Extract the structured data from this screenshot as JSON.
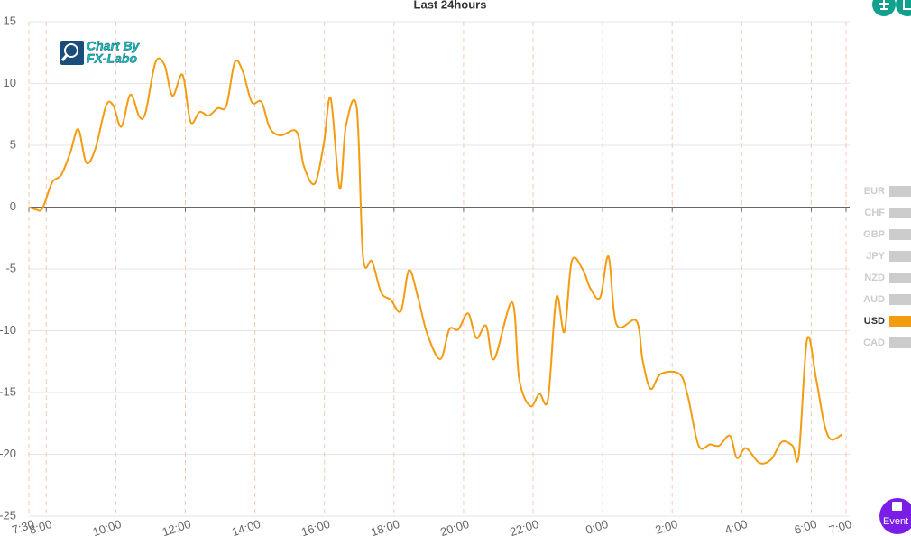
{
  "logo": [
    "Chart By",
    "FX-Labo"
  ],
  "event_button": "Event",
  "chart_data": {
    "type": "line",
    "title": "Last 24hours",
    "legend": [
      "EUR",
      "CHF",
      "GBP",
      "JPY",
      "NZD",
      "AUD",
      "USD",
      "CAD"
    ],
    "legend_inactive_color": "#cccccc",
    "series": [
      {
        "name": "USD",
        "color": "#f39c12",
        "x": [
          7.5,
          7.71,
          7.89,
          8.17,
          8.43,
          8.69,
          8.92,
          9.15,
          9.41,
          9.72,
          9.93,
          10.16,
          10.42,
          10.68,
          10.86,
          11.14,
          11.4,
          11.63,
          11.92,
          12.15,
          12.41,
          12.67,
          12.93,
          13.18,
          13.42,
          13.65,
          13.91,
          14.19,
          14.43,
          14.74,
          15.2,
          15.41,
          15.72,
          15.98,
          16.18,
          16.44,
          16.62,
          16.93,
          17.11,
          17.37,
          17.63,
          17.91,
          18.2,
          18.43,
          18.69,
          18.95,
          19.33,
          19.59,
          19.85,
          20.13,
          20.37,
          20.65,
          20.88,
          21.4,
          21.6,
          21.92,
          22.18,
          22.43,
          22.67,
          22.9,
          23.11,
          23.42,
          23.65,
          23.93,
          24.17,
          24.4,
          24.97,
          25.15,
          25.38,
          25.67,
          26.21,
          26.45,
          26.76,
          27.09,
          27.35,
          27.66,
          27.86,
          28.12,
          28.51,
          28.85,
          29.15,
          29.46,
          29.64,
          29.88,
          30.14,
          30.37,
          30.57,
          30.88
        ],
        "values": [
          0,
          -0.2,
          -0.1,
          2.0,
          2.6,
          4.4,
          6.3,
          3.6,
          4.7,
          8.2,
          8.2,
          6.5,
          9.1,
          7.3,
          7.7,
          11.7,
          11.5,
          9.0,
          10.7,
          6.9,
          7.7,
          7.4,
          8.0,
          8.2,
          11.7,
          11.0,
          8.5,
          8.5,
          6.4,
          5.8,
          6.1,
          3.3,
          1.9,
          5.1,
          8.8,
          1.5,
          6.6,
          8.0,
          -4.0,
          -4.4,
          -6.9,
          -7.5,
          -8.4,
          -5.1,
          -7.3,
          -10.2,
          -12.3,
          -9.9,
          -9.9,
          -8.6,
          -10.6,
          -9.6,
          -12.3,
          -7.7,
          -13.9,
          -16.1,
          -15.1,
          -15.5,
          -7.3,
          -10.1,
          -4.4,
          -5.0,
          -6.6,
          -7.3,
          -4.0,
          -9.5,
          -9.2,
          -12.4,
          -14.7,
          -13.5,
          -13.5,
          -15.3,
          -19.3,
          -19.2,
          -19.3,
          -18.5,
          -20.3,
          -19.5,
          -20.7,
          -20.4,
          -19.0,
          -19.3,
          -20.1,
          -10.7,
          -13.9,
          -17.5,
          -18.8,
          -18.4
        ]
      }
    ],
    "xlim": [
      7.5,
      31
    ],
    "xticks": [
      {
        "value": 7.5,
        "label": "7:30"
      },
      {
        "value": 8,
        "label": "8:00"
      },
      {
        "value": 10,
        "label": "10:00"
      },
      {
        "value": 12,
        "label": "12:00"
      },
      {
        "value": 14,
        "label": "14:00"
      },
      {
        "value": 16,
        "label": "16:00"
      },
      {
        "value": 18,
        "label": "18:00"
      },
      {
        "value": 20,
        "label": "20:00"
      },
      {
        "value": 22,
        "label": "22:00"
      },
      {
        "value": 24,
        "label": "0:00"
      },
      {
        "value": 26,
        "label": "2:00"
      },
      {
        "value": 28,
        "label": "4:00"
      },
      {
        "value": 30,
        "label": "6:00"
      },
      {
        "value": 31,
        "label": "7:00"
      }
    ],
    "ylim": [
      -25,
      15
    ],
    "yticks": [
      -25,
      -20,
      -15,
      -10,
      -5,
      0,
      5,
      10,
      15
    ],
    "grid": true
  }
}
